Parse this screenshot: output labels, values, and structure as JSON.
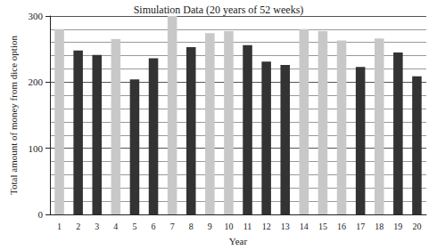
{
  "chart_data": {
    "type": "bar",
    "title": "Simulation Data (20 years of 52 weeks)",
    "x_label": "Year",
    "y_label": "Total amount of money from dice option",
    "categories": [
      "1",
      "2",
      "3",
      "4",
      "5",
      "6",
      "7",
      "8",
      "9",
      "10",
      "11",
      "12",
      "13",
      "14",
      "15",
      "16",
      "17",
      "18",
      "19",
      "20"
    ],
    "values": [
      280,
      248,
      241,
      265,
      204,
      236,
      300,
      253,
      274,
      277,
      256,
      231,
      226,
      280,
      277,
      263,
      223,
      266,
      245,
      209
    ],
    "colors": [
      "#c8c8c8",
      "#333333",
      "#333333",
      "#c8c8c8",
      "#333333",
      "#333333",
      "#c8c8c8",
      "#333333",
      "#c8c8c8",
      "#c8c8c8",
      "#333333",
      "#333333",
      "#333333",
      "#c8c8c8",
      "#c8c8c8",
      "#c8c8c8",
      "#333333",
      "#c8c8c8",
      "#333333",
      "#333333"
    ],
    "ylim": [
      0,
      300
    ],
    "yticks": [
      0,
      100,
      200,
      300
    ],
    "grid": true
  }
}
